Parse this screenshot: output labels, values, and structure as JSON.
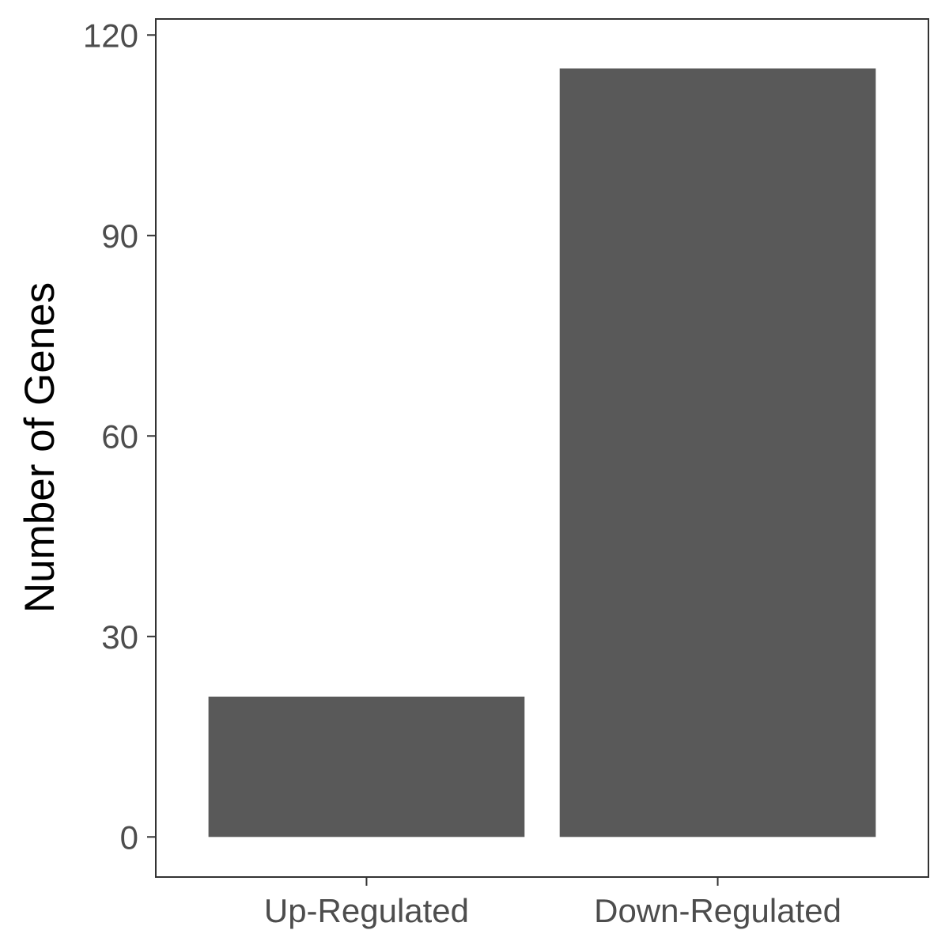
{
  "chart_data": {
    "type": "bar",
    "categories": [
      "Up-Regulated",
      "Down-Regulated"
    ],
    "values": [
      21,
      115
    ],
    "title": "",
    "xlabel": "",
    "ylabel": "Number of Genes",
    "ylim": [
      -6,
      120
    ],
    "yticks": [
      0,
      30,
      60,
      90,
      120
    ],
    "ytick_labels": [
      "0",
      "30",
      "60",
      "90",
      "120"
    ],
    "grid": false,
    "legend": "none",
    "colors": {
      "bar": "#595959",
      "panel_border": "#333333",
      "tick_text": "#4d4d4d",
      "axis_title": "#000000"
    }
  }
}
